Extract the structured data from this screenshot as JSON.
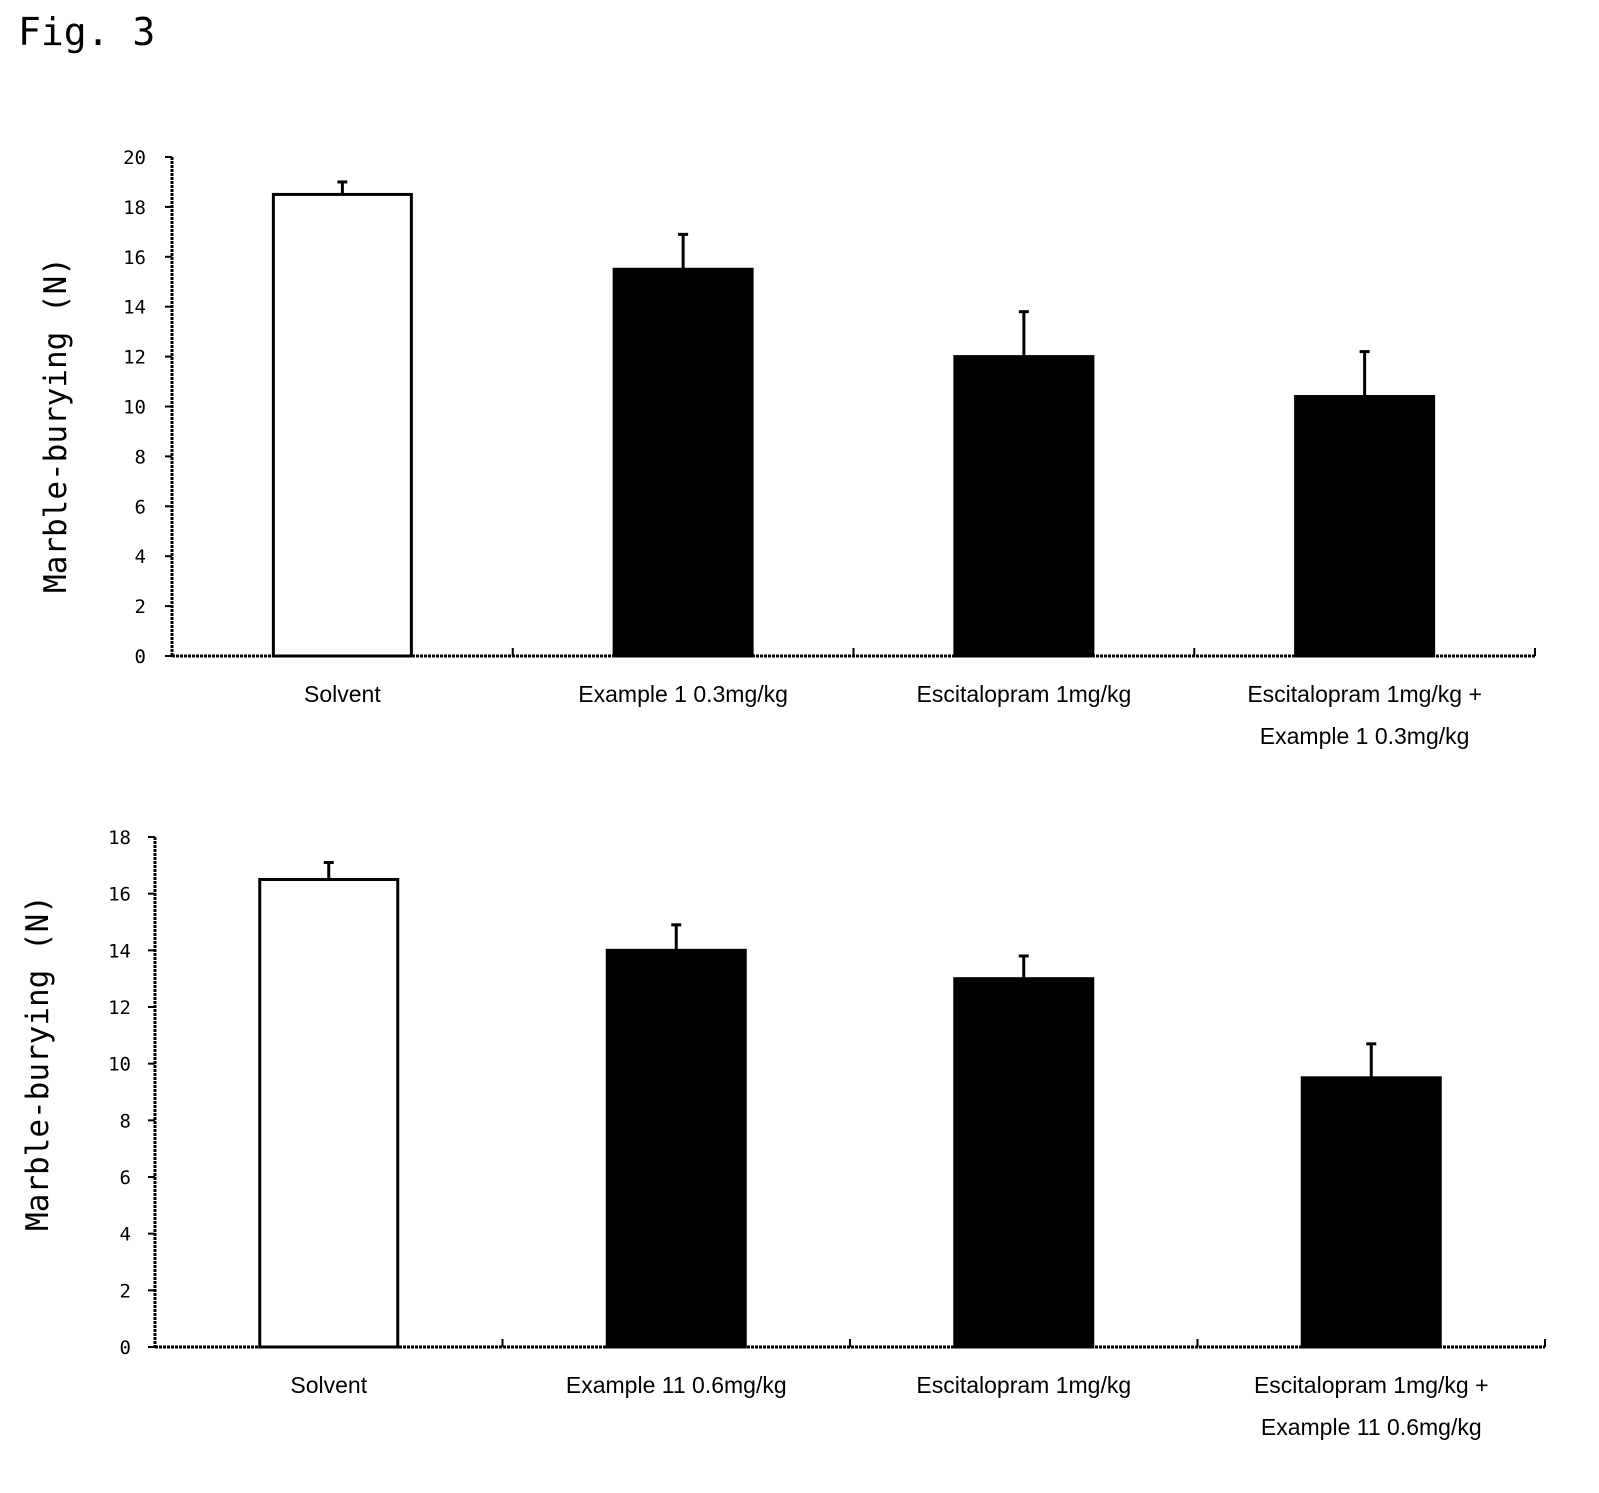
{
  "figure_label": "Fig. 3",
  "chart_data": [
    {
      "type": "bar",
      "ylabel": "Marble-burying (N)",
      "ylim": [
        0,
        20
      ],
      "yticks": [
        0,
        2,
        4,
        6,
        8,
        10,
        12,
        14,
        16,
        18,
        20
      ],
      "categories": [
        [
          "Solvent"
        ],
        [
          "Example 1   0.3mg/kg"
        ],
        [
          "Escitalopram 1mg/kg"
        ],
        [
          "Escitalopram 1mg/kg +",
          "Example 1   0.3mg/kg"
        ]
      ],
      "values": [
        18.5,
        15.5,
        12.0,
        10.4
      ],
      "errors": [
        0.5,
        1.4,
        1.8,
        1.8
      ],
      "bar_colors": [
        "#ffffff",
        "#000000",
        "#000000",
        "#000000"
      ]
    },
    {
      "type": "bar",
      "ylabel": "Marble-burying (N)",
      "ylim": [
        0,
        18
      ],
      "yticks": [
        0,
        2,
        4,
        6,
        8,
        10,
        12,
        14,
        16,
        18
      ],
      "categories": [
        [
          "Solvent"
        ],
        [
          "Example 11   0.6mg/kg"
        ],
        [
          "Escitalopram 1mg/kg"
        ],
        [
          "Escitalopram 1mg/kg +",
          "Example 11   0.6mg/kg"
        ]
      ],
      "values": [
        16.5,
        14.0,
        13.0,
        9.5
      ],
      "errors": [
        0.6,
        0.9,
        0.8,
        1.2
      ],
      "bar_colors": [
        "#ffffff",
        "#000000",
        "#000000",
        "#000000"
      ]
    }
  ]
}
